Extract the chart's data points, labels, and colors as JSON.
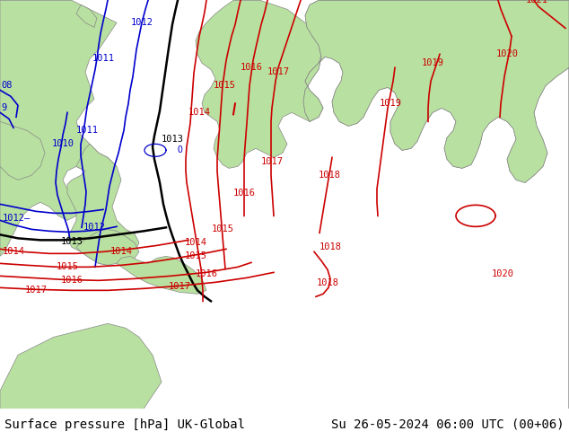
{
  "title_left": "Surface pressure [hPa] UK-Global",
  "title_right": "Su 26-05-2024 06:00 UTC (00+06)",
  "title_fontsize": 10,
  "title_font": "monospace",
  "sea_color": "#d0d0d0",
  "land_green": "#b8e0a0",
  "land_outline": "#888888",
  "isobar_red": "#cc0000",
  "isobar_blue": "#0000cc",
  "isobar_black": "#000000",
  "label_fontsize": 7.5,
  "bottom_bar_color": "#ffffff",
  "isobar_lw": 1.2,
  "isobar_black_lw": 1.8
}
